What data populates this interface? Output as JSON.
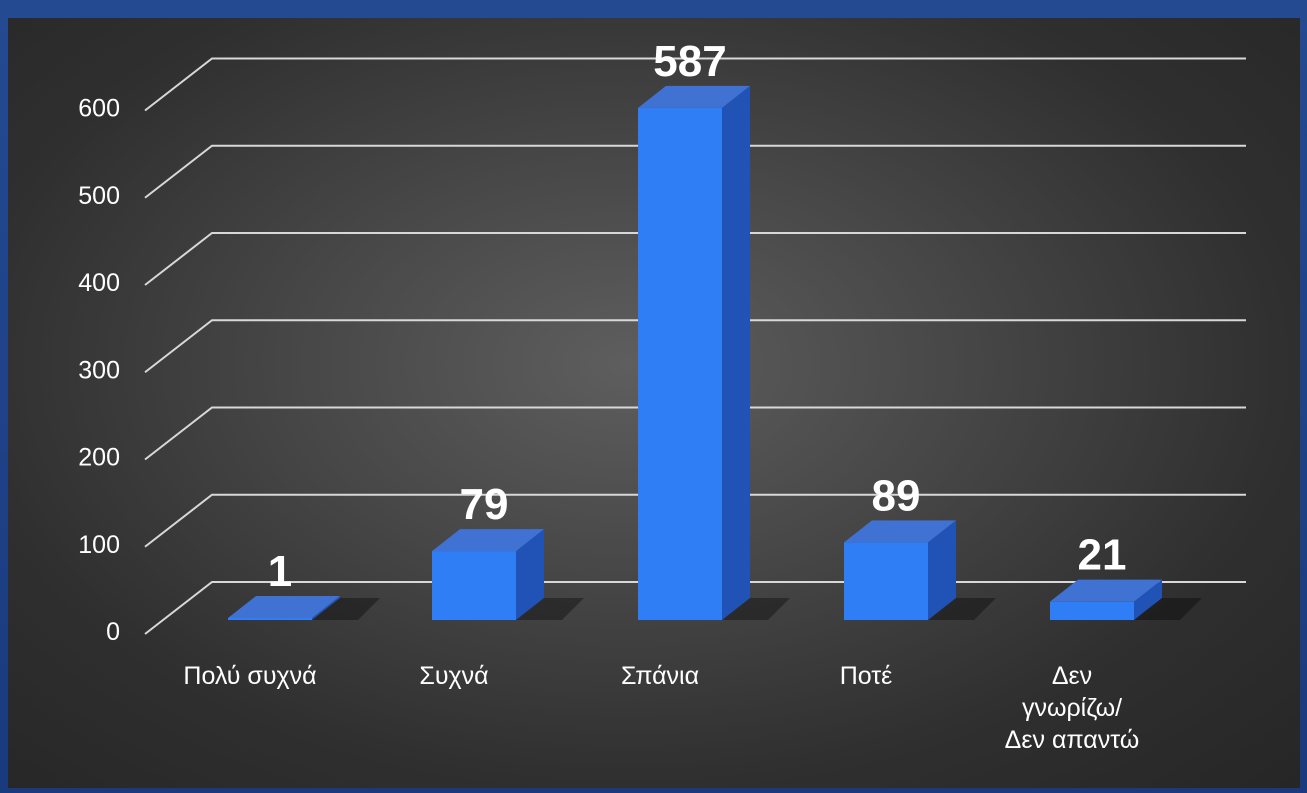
{
  "chart_data": {
    "type": "bar",
    "categories": [
      "Πολύ συχνά",
      "Συχνά",
      "Σπάνια",
      "Ποτέ",
      "Δεν γνωρίζω/ Δεν απαντώ"
    ],
    "category_lines": [
      [
        "Πολύ συχνά"
      ],
      [
        "Συχνά"
      ],
      [
        "Σπάνια"
      ],
      [
        "Ποτέ"
      ],
      [
        "Δεν",
        "γνωρίζω/",
        "Δεν απαντώ"
      ]
    ],
    "values": [
      1,
      79,
      587,
      89,
      21
    ],
    "data_labels": [
      "1",
      "79",
      "587",
      "89",
      "21"
    ],
    "yticks": [
      0,
      100,
      200,
      300,
      400,
      500,
      600
    ],
    "ylim": [
      0,
      600
    ],
    "grid": true,
    "legend": "none",
    "bar_style": "3d",
    "colors": {
      "bar_front": "#2f7ef6",
      "bar_top": "#3f72d2",
      "bar_side": "#2152b6",
      "gridline": "#d8d8d8",
      "text": "#ffffff"
    }
  }
}
